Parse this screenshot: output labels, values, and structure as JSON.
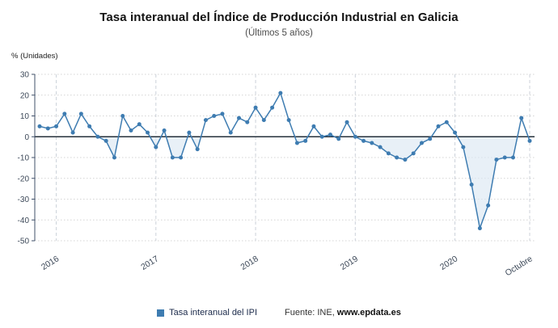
{
  "chart_data": {
    "type": "line",
    "title": "Tasa interanual del Índice de Producción Industrial en Galicia",
    "subtitle": "(Últimos 5 años)",
    "ylabel": "% (Unidades)",
    "ylim": [
      -50,
      30
    ],
    "ytick_step": 10,
    "yticks": [
      30,
      20,
      10,
      0,
      -10,
      -20,
      -30,
      -40,
      -50
    ],
    "x_tick_labels": [
      "2016",
      "2017",
      "2018",
      "2019",
      "2020",
      "Octubre"
    ],
    "x_tick_positions": [
      2,
      14,
      26,
      38,
      50,
      59
    ],
    "x_unit": "month",
    "grid": true,
    "legend_position": "bottom",
    "area_color": "#dce8f3",
    "series": [
      {
        "name": "Tasa interanual del IPI",
        "color": "#3e7cb1",
        "values": [
          5,
          4,
          5,
          11,
          2,
          11,
          5,
          0,
          -2,
          -10,
          10,
          3,
          6,
          2,
          -5,
          3,
          -10,
          -10,
          2,
          -6,
          8,
          10,
          11,
          2,
          9,
          7,
          14,
          8,
          14,
          21,
          8,
          -3,
          -2,
          5,
          0,
          1,
          -1,
          7,
          0,
          -2,
          -3,
          -5,
          -8,
          -10,
          -11,
          -8,
          -3,
          -1,
          5,
          7,
          2,
          -5,
          -23,
          -44,
          -33,
          -11,
          -10,
          -10,
          9,
          -2
        ]
      }
    ],
    "source_prefix": "Fuente: INE,",
    "source_site": "www.epdata.es"
  }
}
